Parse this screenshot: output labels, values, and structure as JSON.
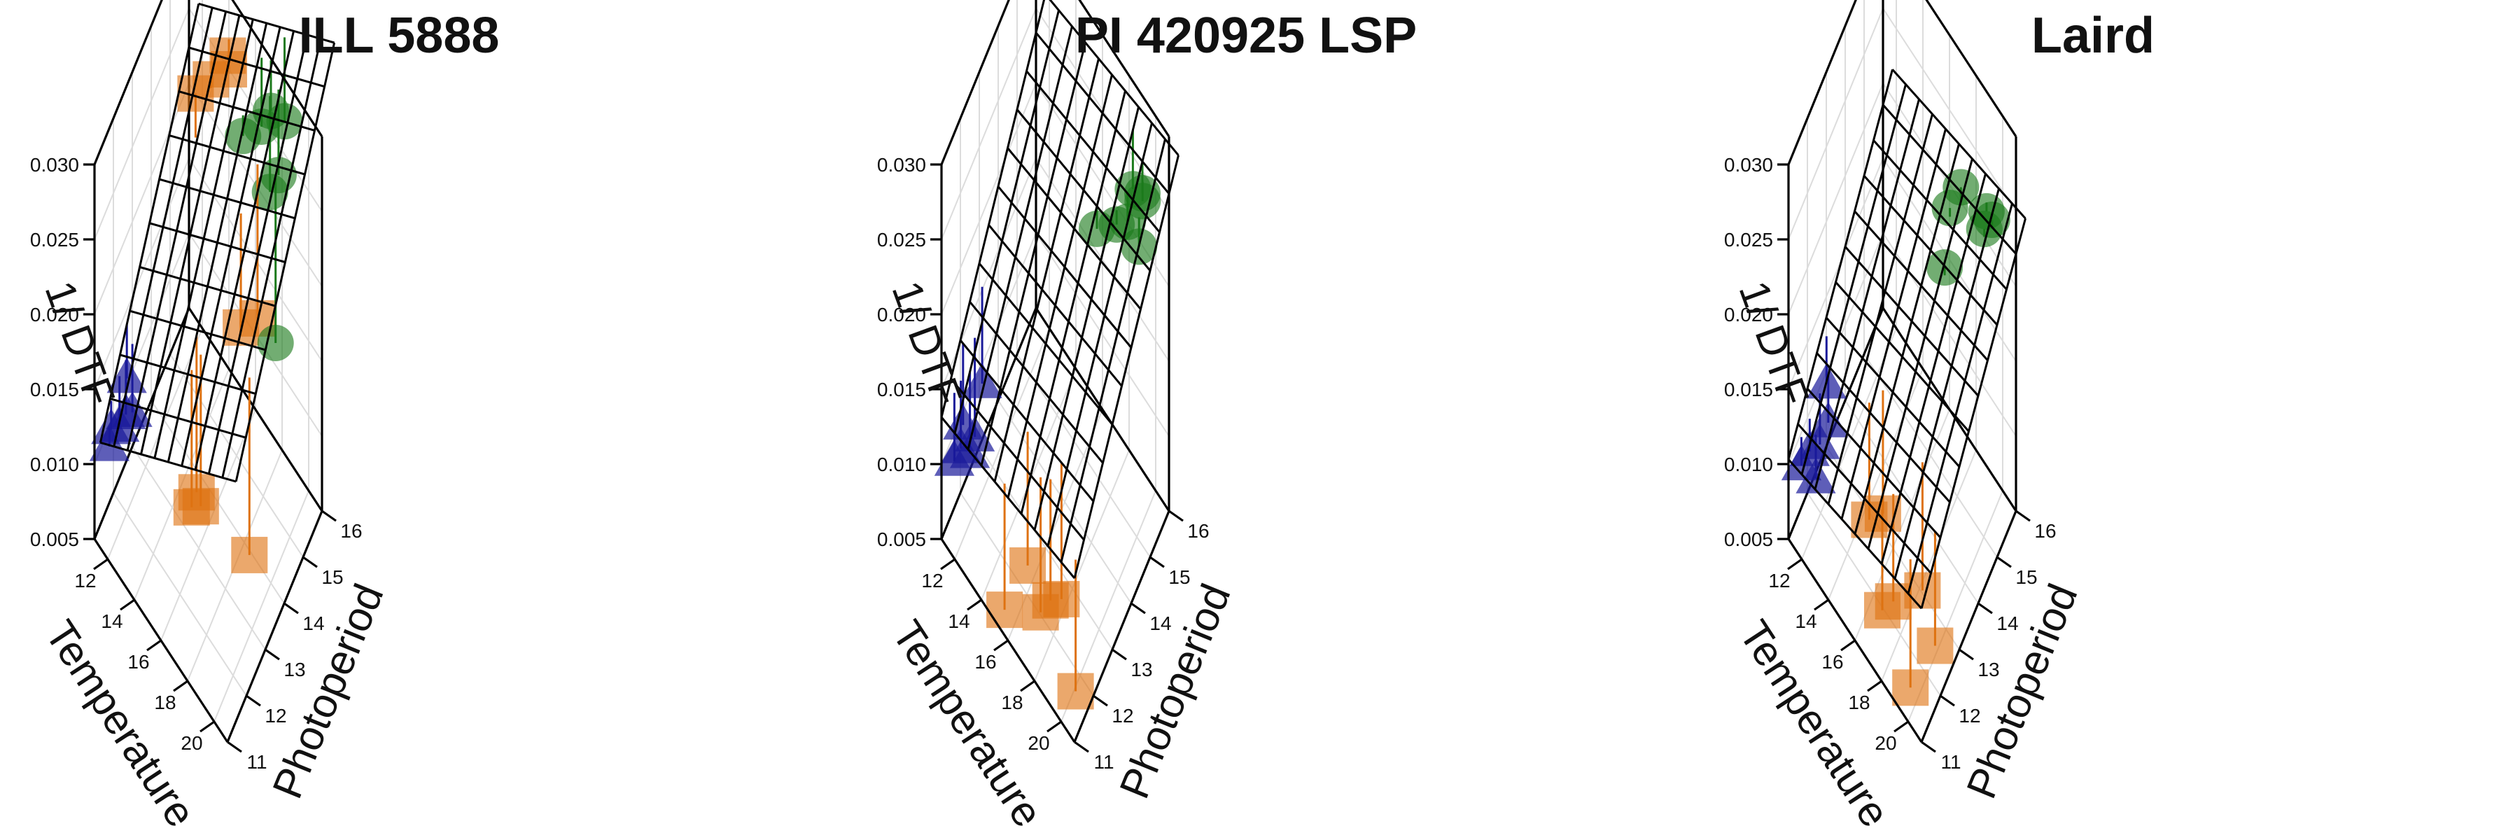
{
  "chart_data": [
    {
      "type": "scatter3d",
      "title": "ILL 5888",
      "xlabel": "Temperature",
      "ylabel": "Photoperiod",
      "zlabel": "1/ DTF",
      "xlim": [
        11,
        21
      ],
      "ylim": [
        11,
        16
      ],
      "zlim": [
        0.005,
        0.03
      ],
      "xticks": [
        12,
        14,
        16,
        18,
        20
      ],
      "yticks": [
        11,
        12,
        13,
        14,
        15,
        16
      ],
      "zticks": [
        "0.005",
        "0.010",
        "0.015",
        "0.020",
        "0.025",
        "0.030"
      ],
      "grid": true,
      "surface": {
        "a": -0.0292,
        "bt": 0.0011,
        "bp": 0.00255,
        "tmin": 11.3,
        "tmax": 21.5,
        "pmin": 11.1,
        "pmax": 16.3,
        "nt": 10,
        "np": 10
      },
      "series": [
        {
          "marker": "triangle",
          "color": "#1a1a9a",
          "points": [
            [
              11.4,
              11.6,
              0.011
            ],
            [
              11.6,
              11.9,
              0.0105
            ],
            [
              11.8,
              12.1,
              0.011
            ],
            [
              11.3,
              12.5,
              0.0115
            ],
            [
              12.0,
              12.3,
              0.0108
            ],
            [
              11.7,
              11.3,
              0.0112
            ]
          ]
        },
        {
          "marker": "square",
          "color": "#de7212",
          "points": [
            [
              13.2,
              14.8,
              0.026
            ],
            [
              13.5,
              15.4,
              0.0255
            ],
            [
              14.2,
              15.8,
              0.0268
            ],
            [
              14.0,
              16.0,
              0.025
            ],
            [
              16.6,
              12.2,
              0.011
            ],
            [
              16.4,
              12.6,
              0.0105
            ],
            [
              17.0,
              12.4,
              0.011
            ],
            [
              20.8,
              12.3,
              0.0132
            ],
            [
              17.6,
              14.1,
              0.0185
            ],
            [
              18.0,
              14.7,
              0.0178
            ]
          ]
        },
        {
          "marker": "circle",
          "color": "#1c7a1c",
          "points": [
            [
              16.2,
              15.2,
              0.026
            ],
            [
              16.6,
              15.9,
              0.025
            ],
            [
              17.3,
              15.9,
              0.027
            ],
            [
              17.8,
              15.5,
              0.0235
            ],
            [
              18.3,
              15.6,
              0.025
            ],
            [
              17.9,
              16.2,
              0.0262
            ],
            [
              19.5,
              14.6,
              0.0185
            ]
          ]
        }
      ]
    },
    {
      "type": "scatter3d",
      "title": "PI 420925 LSP",
      "xlabel": "Temperature",
      "ylabel": "Photoperiod",
      "zlabel": "1/ DTF",
      "xlim": [
        11,
        21
      ],
      "ylim": [
        11,
        16
      ],
      "zlim": [
        0.005,
        0.03
      ],
      "xticks": [
        12,
        14,
        16,
        18,
        20
      ],
      "yticks": [
        11,
        12,
        13,
        14,
        15,
        16
      ],
      "zticks": [
        "0.005",
        "0.010",
        "0.015",
        "0.020",
        "0.025",
        "0.030"
      ],
      "grid": true,
      "surface": {
        "a": -0.0125,
        "bt": 0.00028,
        "bp": 0.00205,
        "tmin": 11.0,
        "tmax": 21.0,
        "pmin": 11.0,
        "pmax": 16.5,
        "nt": 10,
        "np": 11
      },
      "series": [
        {
          "marker": "triangle",
          "color": "#1a1a9a",
          "points": [
            [
              11.4,
              11.4,
              0.0095
            ],
            [
              11.6,
              11.6,
              0.01
            ],
            [
              11.2,
              12.0,
              0.0098
            ],
            [
              11.8,
              12.2,
              0.0092
            ],
            [
              12.0,
              11.8,
              0.0096
            ],
            [
              11.5,
              12.8,
              0.0105
            ]
          ]
        },
        {
          "marker": "square",
          "color": "#de7212",
          "points": [
            [
              15.6,
              11.1,
              0.0062
            ],
            [
              16.2,
              11.9,
              0.0075
            ],
            [
              18.2,
              11.7,
              0.0085
            ],
            [
              18.6,
              12.0,
              0.0082
            ],
            [
              17.6,
              11.6,
              0.0072
            ],
            [
              20.8,
              11.2,
              0.0075
            ]
          ]
        },
        {
          "marker": "circle",
          "color": "#1c7a1c",
          "points": [
            [
              17.0,
              15.0,
              0.0215
            ],
            [
              18.6,
              15.5,
              0.0226
            ],
            [
              19.0,
              16.0,
              0.0235
            ],
            [
              19.3,
              15.8,
              0.024
            ],
            [
              19.6,
              15.4,
              0.0226
            ],
            [
              18.2,
              15.2,
              0.0228
            ],
            [
              18.0,
              16.2,
              0.0218
            ]
          ]
        }
      ]
    },
    {
      "type": "scatter3d",
      "title": "Laird",
      "xlabel": "Temperature",
      "ylabel": "Photoperiod",
      "zlabel": "1/ DTF",
      "xlim": [
        11,
        21
      ],
      "ylim": [
        11,
        16
      ],
      "zlim": [
        0.005,
        0.03
      ],
      "xticks": [
        12,
        14,
        16,
        18,
        20
      ],
      "yticks": [
        11,
        12,
        13,
        14,
        15,
        16
      ],
      "zticks": [
        "0.005",
        "0.010",
        "0.015",
        "0.020",
        "0.025",
        "0.030"
      ],
      "grid": true,
      "surface": {
        "a": -0.0118,
        "bt": 0.00036,
        "bp": 0.00165,
        "tmin": 11.0,
        "tmax": 21.0,
        "pmin": 11.0,
        "pmax": 16.5,
        "nt": 10,
        "np": 11
      },
      "series": [
        {
          "marker": "triangle",
          "color": "#1a1a9a",
          "points": [
            [
              11.4,
              11.4,
              0.0092
            ],
            [
              11.6,
              11.7,
              0.0095
            ],
            [
              11.8,
              12.1,
              0.009
            ],
            [
              12.0,
              12.4,
              0.0098
            ],
            [
              12.2,
              11.6,
              0.0088
            ],
            [
              11.3,
              12.8,
              0.0102
            ]
          ]
        },
        {
          "marker": "square",
          "color": "#de7212",
          "points": [
            [
              14.8,
              12.6,
              0.0065
            ],
            [
              15.4,
              12.9,
              0.0068
            ],
            [
              17.2,
              11.6,
              0.0068
            ],
            [
              18.8,
              12.6,
              0.0072
            ],
            [
              19.6,
              11.4,
              0.0055
            ],
            [
              20.6,
              12.0,
              0.0078
            ],
            [
              17.6,
              11.9,
              0.007
            ]
          ]
        },
        {
          "marker": "circle",
          "color": "#1c7a1c",
          "points": [
            [
              16.6,
              15.6,
              0.0205
            ],
            [
              17.0,
              15.9,
              0.0215
            ],
            [
              18.5,
              16.2,
              0.021
            ],
            [
              18.9,
              15.8,
              0.0216
            ],
            [
              19.2,
              16.0,
              0.022
            ],
            [
              17.2,
              14.9,
              0.0195
            ]
          ]
        }
      ]
    }
  ]
}
